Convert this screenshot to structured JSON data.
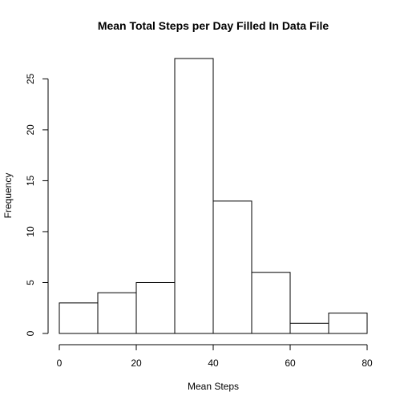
{
  "chart_data": {
    "type": "bar",
    "title": "Mean Total Steps per Day Filled In Data File",
    "xlabel": "Mean Steps",
    "ylabel": "Frequency",
    "bins": [
      {
        "from": 0,
        "to": 10,
        "count": 3
      },
      {
        "from": 10,
        "to": 20,
        "count": 4
      },
      {
        "from": 20,
        "to": 30,
        "count": 5
      },
      {
        "from": 30,
        "to": 40,
        "count": 27
      },
      {
        "from": 40,
        "to": 50,
        "count": 13
      },
      {
        "from": 50,
        "to": 60,
        "count": 6
      },
      {
        "from": 60,
        "to": 70,
        "count": 1
      },
      {
        "from": 70,
        "to": 80,
        "count": 2
      }
    ],
    "xlim": [
      0,
      80
    ],
    "ylim": [
      0,
      27
    ],
    "x_ticks": [
      "0",
      "20",
      "40",
      "60",
      "80"
    ],
    "y_ticks": [
      "0",
      "5",
      "10",
      "15",
      "20",
      "25"
    ],
    "grid": false
  }
}
